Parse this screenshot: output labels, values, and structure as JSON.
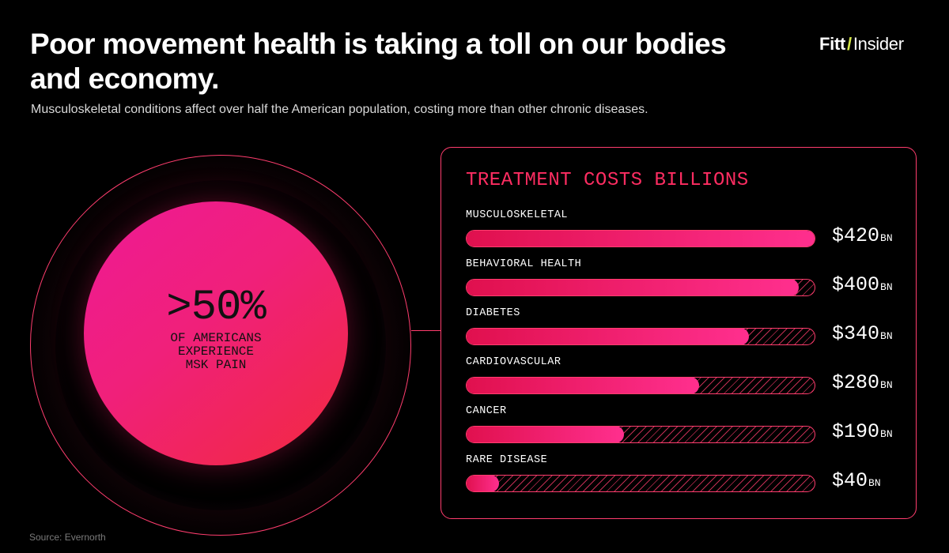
{
  "header": {
    "title": "Poor movement health is taking a toll on our bodies and economy.",
    "subtitle": "Musculoskeletal conditions affect over half the American population, costing more than other chronic diseases."
  },
  "logo": {
    "part1": "Fitt",
    "separator": "/",
    "part2": "Insider"
  },
  "stat": {
    "value": ">50%",
    "label": "OF AMERICANS\nEXPERIENCE\nMSK PAIN"
  },
  "source": "Source: Evernorth",
  "colors": {
    "background": "#000000",
    "accent": "#ff3d6e",
    "bar_fill": "#ff2f8e",
    "logo_slash": "#d6e84a"
  },
  "chart_data": {
    "type": "bar",
    "orientation": "horizontal",
    "title": "TREATMENT COSTS BILLIONS",
    "categories": [
      "MUSCULOSKELETAL",
      "BEHAVIORAL HEALTH",
      "DIABETES",
      "CARDIOVASCULAR",
      "CANCER",
      "RARE DISEASE"
    ],
    "values": [
      420,
      400,
      340,
      280,
      190,
      40
    ],
    "value_labels": [
      "$420",
      "$400",
      "$340",
      "$280",
      "$190",
      "$40"
    ],
    "unit_label": "BN",
    "xlim": [
      0,
      420
    ],
    "grid": false
  }
}
